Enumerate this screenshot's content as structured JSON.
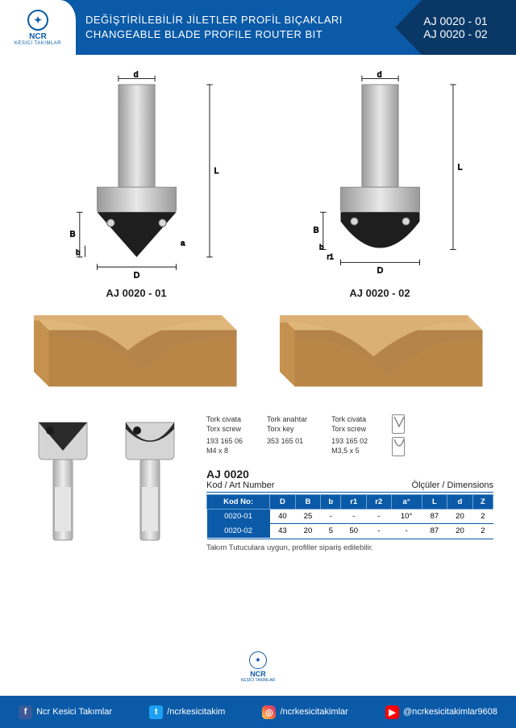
{
  "brand": {
    "name": "NCR",
    "sub": "KESİCİ TAKIMLAR"
  },
  "header": {
    "title_tr": "DEĞİŞTİRİLEBİLİR JİLETLER PROFİL BIÇAKLARI",
    "title_en": "CHANGEABLE BLADE PROFILE ROUTER BIT",
    "code1": "AJ 0020 - 01",
    "code2": "AJ 0020 - 02"
  },
  "diagram": {
    "labels": {
      "d": "d",
      "L": "L",
      "B": "B",
      "b": "b",
      "a": "a",
      "D": "D",
      "r1": "r1"
    },
    "left": {
      "name": "AJ 0020 - 01"
    },
    "right": {
      "name": "AJ 0020 - 02"
    },
    "colors": {
      "shaft": "#bfbfbf",
      "body": "#bfbfbf",
      "blade": "#1e1e1e",
      "line": "#111"
    }
  },
  "wood": {
    "fill": "#cd9a59",
    "fill_dark": "#b98647"
  },
  "parts": [
    {
      "tr": "Tork civata",
      "en": "Torx screw",
      "num": "193 165 06",
      "size": "M4 x 8"
    },
    {
      "tr": "Tork anahtar",
      "en": "Torx key",
      "num": "353 165 01",
      "size": ""
    },
    {
      "tr": "Tork civata",
      "en": "Torx screw",
      "num": "193 165 02",
      "size": "M3,5 x 5"
    }
  ],
  "table": {
    "model": "AJ 0020",
    "left_header": "Kod / Art Number",
    "right_header": "Ölçüler / Dimensions",
    "columns": [
      "Kod No:",
      "D",
      "B",
      "b",
      "r1",
      "r2",
      "a°",
      "L",
      "d",
      "Z"
    ],
    "rows": [
      [
        "0020-01",
        "40",
        "25",
        "-",
        "-",
        "-",
        "10°",
        "87",
        "20",
        "2"
      ],
      [
        "0020-02",
        "43",
        "20",
        "5",
        "50",
        "-",
        "-",
        "87",
        "20",
        "2"
      ]
    ],
    "note": "Takım Tutuculara uygun, profiller sipariş edilebilir."
  },
  "social": {
    "fb": "Ncr Kesici Takımlar",
    "tw": "/ncrkesicitakim",
    "ig": "/ncrkesicitakimlar",
    "yt": "@ncrkesicitakimlar9608"
  },
  "colors": {
    "primary": "#0a5aa8",
    "primary_dark": "#093866"
  }
}
